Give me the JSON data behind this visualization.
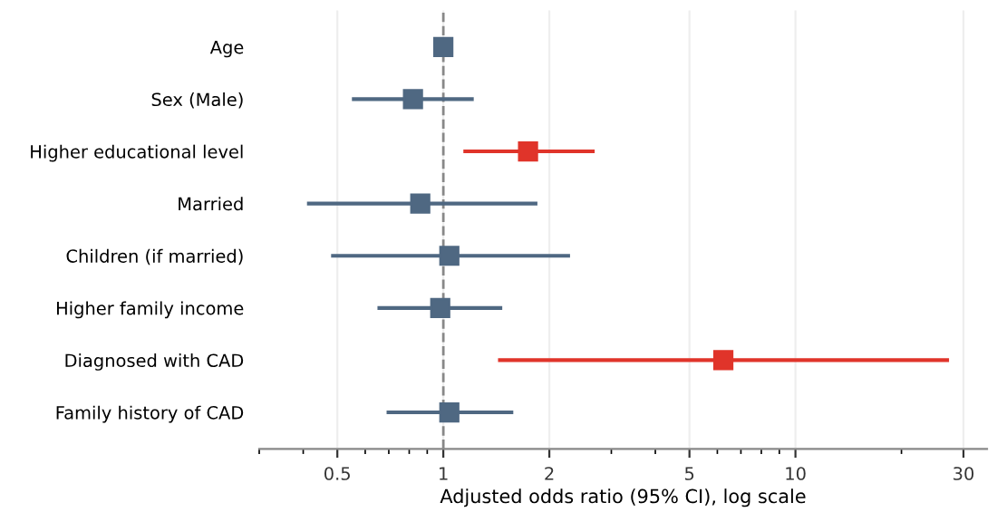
{
  "chart_data": {
    "type": "scatter",
    "orientation": "horizontal",
    "xlabel": "Adjusted odds ratio (95% CI), log scale",
    "categories": [
      "Age",
      "Sex (Male)",
      "Higher educational level",
      "Married",
      "Children (if married)",
      "Higher family income",
      "Diagnosed with CAD",
      "Family history of CAD"
    ],
    "values": [
      1.0,
      0.82,
      1.74,
      0.86,
      1.04,
      0.98,
      6.24,
      1.04
    ],
    "errors": [
      null,
      [
        0.55,
        1.22
      ],
      [
        1.14,
        2.69
      ],
      [
        0.41,
        1.85
      ],
      [
        0.48,
        2.29
      ],
      [
        0.65,
        1.47
      ],
      [
        1.43,
        27.3
      ],
      [
        0.69,
        1.58
      ]
    ],
    "colors": [
      "#4f6882",
      "#4f6882",
      "#e0342a",
      "#4f6882",
      "#4f6882",
      "#4f6882",
      "#e0342a",
      "#4f6882"
    ],
    "marker": "square",
    "log": "x",
    "xlim": [
      0.3,
      35
    ],
    "xticks": [
      0.5,
      1,
      2,
      5,
      10,
      30
    ],
    "grid": "x",
    "ref_lines": [
      {
        "axis": "x",
        "value": 1,
        "label": null,
        "color": "#888888",
        "line_style": "dashed"
      }
    ]
  }
}
